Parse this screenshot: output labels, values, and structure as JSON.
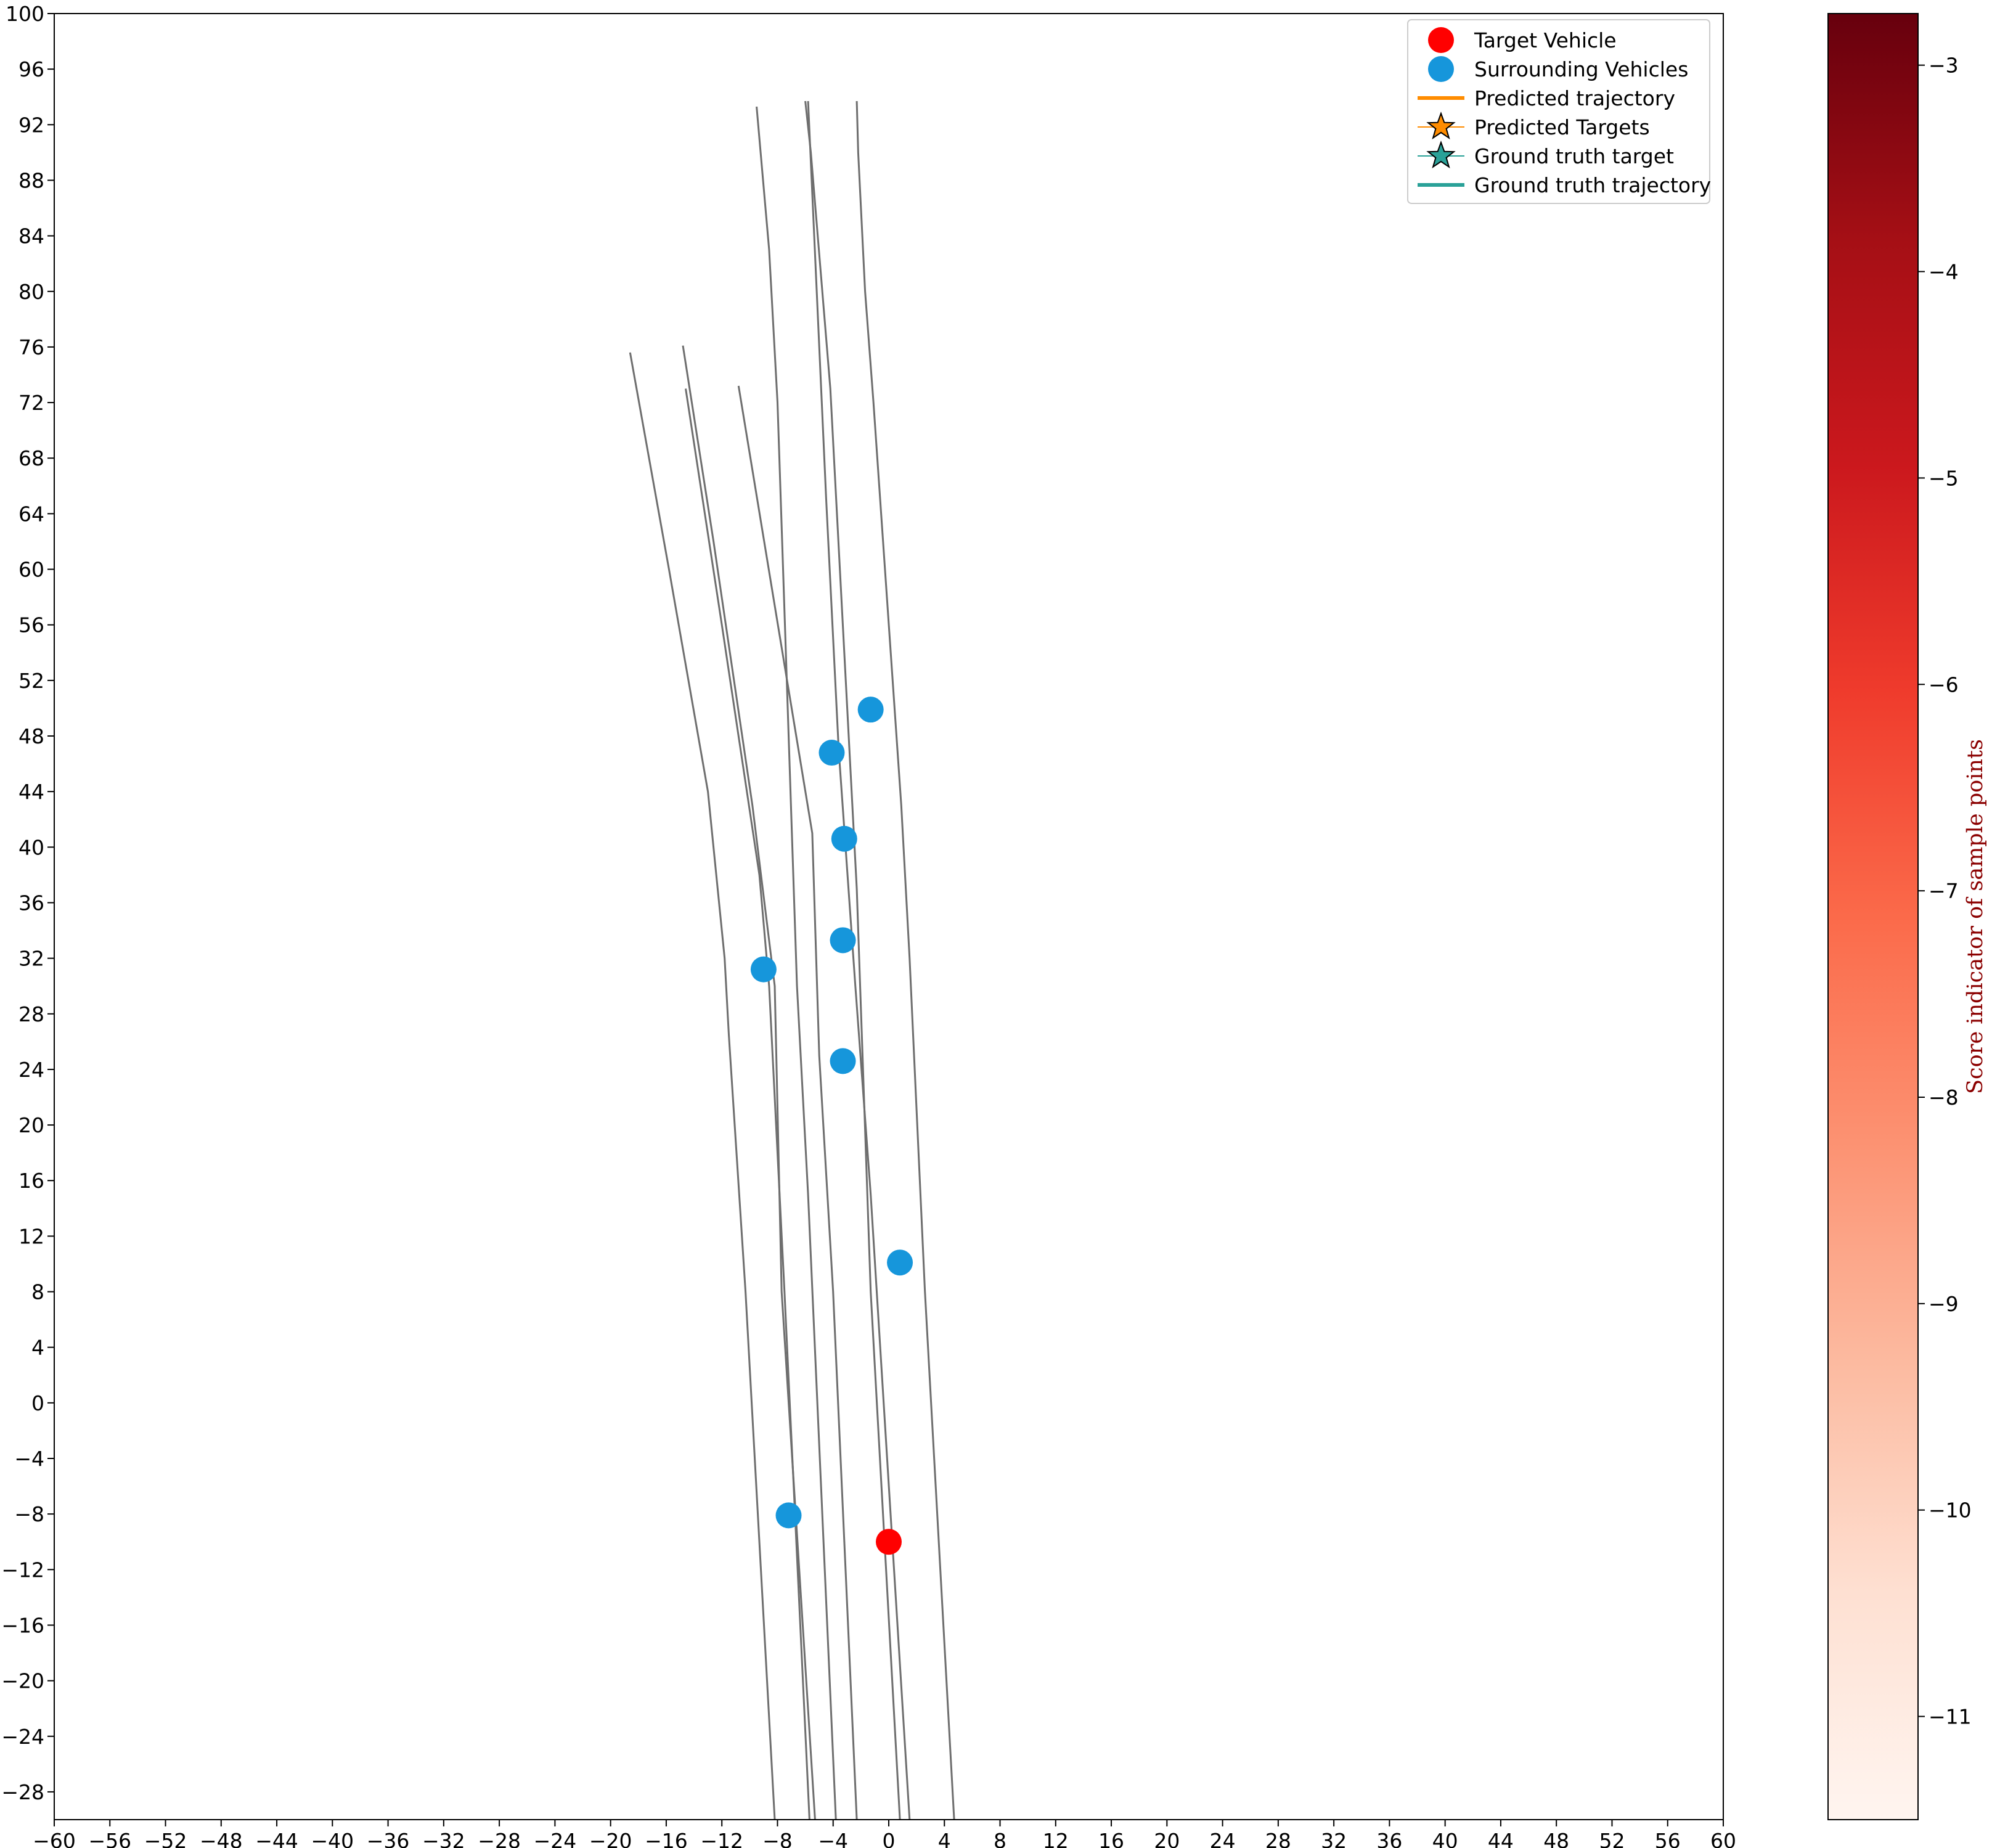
{
  "chart_data": {
    "type": "scatter",
    "xlim": [
      -60,
      60
    ],
    "ylim": [
      -30,
      100
    ],
    "x_ticks": [
      -60,
      -56,
      -52,
      -48,
      -44,
      -40,
      -36,
      -32,
      -28,
      -24,
      -20,
      -16,
      -12,
      -8,
      -4,
      0,
      4,
      8,
      12,
      16,
      20,
      24,
      28,
      32,
      36,
      40,
      44,
      48,
      52,
      56,
      60
    ],
    "y_ticks": [
      -28,
      -24,
      -20,
      -16,
      -12,
      -8,
      -4,
      0,
      4,
      8,
      12,
      16,
      20,
      24,
      28,
      32,
      36,
      40,
      44,
      48,
      52,
      56,
      60,
      64,
      68,
      72,
      76,
      80,
      84,
      88,
      92,
      96,
      100
    ],
    "grid": false,
    "legend_placement": "top-right",
    "legend": [
      {
        "label": "Target Vehicle",
        "marker": "circle",
        "color": "#ff0000"
      },
      {
        "label": "Surrounding Vehicles",
        "marker": "circle",
        "color": "#1696db"
      },
      {
        "label": "Predicted trajectory",
        "marker": "line",
        "color": "#ff8c00"
      },
      {
        "label": "Predicted Targets",
        "marker": "star",
        "color": "#ff8c00"
      },
      {
        "label": "Ground truth target",
        "marker": "star",
        "color": "#2aa198"
      },
      {
        "label": "Ground truth trajectory",
        "marker": "line",
        "color": "#2aa198"
      }
    ],
    "target_vehicle": {
      "x": 0,
      "y": -10
    },
    "surrounding_vehicles": [
      {
        "x": -7.2,
        "y": -8.1
      },
      {
        "x": 0.8,
        "y": 10.1
      },
      {
        "x": -3.3,
        "y": 24.6
      },
      {
        "x": -9,
        "y": 31.2
      },
      {
        "x": -3.3,
        "y": 33.3
      },
      {
        "x": -3.2,
        "y": 40.6
      },
      {
        "x": -4.1,
        "y": 46.8
      },
      {
        "x": -1.3,
        "y": 49.9
      }
    ],
    "lane_lines": [
      [
        [
          -18.6,
          75.6
        ],
        [
          -15.8,
          60
        ],
        [
          -13,
          44
        ],
        [
          -11.8,
          32
        ],
        [
          -11.5,
          26.5
        ],
        [
          -10.3,
          8
        ],
        [
          -8.2,
          -30
        ]
      ],
      [
        [
          -14.8,
          76.1
        ],
        [
          -12.6,
          62
        ],
        [
          -9.8,
          43
        ],
        [
          -8.2,
          30
        ],
        [
          -7.7,
          8
        ],
        [
          -5.3,
          -30
        ]
      ],
      [
        [
          -14.6,
          73
        ],
        [
          -12,
          56
        ],
        [
          -9.3,
          38
        ],
        [
          -8.6,
          30
        ],
        [
          -7.5,
          8
        ],
        [
          -5.7,
          -30
        ]
      ],
      [
        [
          -10.8,
          73.2
        ],
        [
          -8.3,
          58
        ],
        [
          -5.5,
          41
        ],
        [
          -5,
          25
        ],
        [
          -4,
          8
        ],
        [
          -2.3,
          -30
        ]
      ],
      [
        [
          -9.5,
          93.3
        ],
        [
          -8.6,
          83
        ],
        [
          -8,
          72
        ],
        [
          -6.6,
          30
        ],
        [
          -5.8,
          15
        ],
        [
          -3.8,
          -30
        ]
      ],
      [
        [
          -6,
          93.7
        ],
        [
          -5.6,
          90
        ],
        [
          -4.2,
          73
        ],
        [
          -2.3,
          37
        ],
        [
          -1.3,
          8
        ],
        [
          0.8,
          -30
        ]
      ],
      [
        [
          -2.3,
          93.7
        ],
        [
          -2.2,
          90
        ],
        [
          -1.7,
          80
        ],
        [
          -1.1,
          72
        ],
        [
          0.9,
          43
        ],
        [
          1.5,
          32
        ],
        [
          2.6,
          8
        ],
        [
          4.7,
          -30
        ]
      ],
      [
        [
          -5.8,
          93.7
        ],
        [
          -4.5,
          65
        ],
        [
          -3.6,
          47
        ],
        [
          -2.4,
          30
        ],
        [
          -1.3,
          15
        ],
        [
          1.5,
          -30
        ]
      ]
    ],
    "colorbar": {
      "label": "Score indicator of sample points",
      "range": [
        -11.5,
        -2.75
      ],
      "ticks": [
        -11,
        -10,
        -9,
        -8,
        -7,
        -6,
        -5,
        -4,
        -3
      ],
      "colormap": "Reds",
      "colors": [
        "#fff5f0",
        "#fee0d2",
        "#fcbba1",
        "#fc9272",
        "#fb6a4a",
        "#ef3b2c",
        "#cb181d",
        "#a50f15",
        "#67000d"
      ]
    }
  }
}
